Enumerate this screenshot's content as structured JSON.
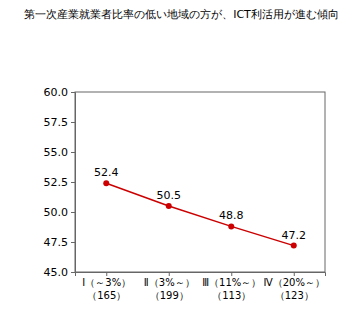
{
  "chart_data": {
    "type": "line",
    "title": "第一次産業就業者比率の低い地域の方が、ICT利活用が進む傾向",
    "categories": [
      "Ⅰ（～3%）\n（165）",
      "Ⅱ（3%～）\n（199）",
      "Ⅲ（11%～）\n（113）",
      "Ⅳ（20%～）\n（123）"
    ],
    "values": [
      52.4,
      50.5,
      48.8,
      47.2
    ],
    "color": "#cc0000",
    "marker": "circle",
    "data_labels": true,
    "grid": false,
    "ylim": [
      45,
      60
    ],
    "yticks": [
      {
        "value": 45,
        "label": "45.0"
      },
      47.5,
      {
        "value": 50,
        "label": "50.0"
      },
      52.5,
      {
        "value": 55,
        "label": "55.0"
      },
      57.5,
      {
        "value": 60,
        "label": "60.0"
      }
    ]
  }
}
